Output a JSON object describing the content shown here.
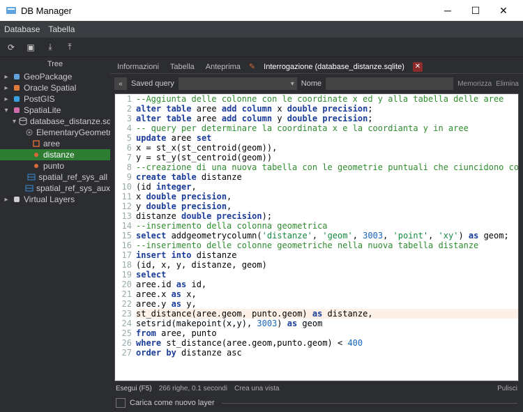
{
  "window": {
    "title": "DB Manager"
  },
  "menus": {
    "database": "Database",
    "tabella": "Tabella"
  },
  "tree_header": "Tree",
  "tree": [
    {
      "label": "GeoPackage",
      "depth": 0,
      "twisty": "▸",
      "icon": "geopackage-icon",
      "color": "#5fa3e0"
    },
    {
      "label": "Oracle Spatial",
      "depth": 0,
      "twisty": "▸",
      "icon": "oracle-icon",
      "color": "#e07c3a"
    },
    {
      "label": "PostGIS",
      "depth": 0,
      "twisty": "▸",
      "icon": "postgis-icon",
      "color": "#3aa0e0"
    },
    {
      "label": "SpatiaLite",
      "depth": 0,
      "twisty": "▾",
      "icon": "spatialite-icon",
      "color": "#d06aa8"
    },
    {
      "label": "database_distanze.sqlite",
      "depth": 1,
      "twisty": "▾",
      "icon": "db-icon",
      "color": "#cccccc"
    },
    {
      "label": "ElementaryGeometries",
      "depth": 2,
      "twisty": "",
      "icon": "gear-icon",
      "color": "#999999"
    },
    {
      "label": "aree",
      "depth": 2,
      "twisty": "",
      "icon": "polygon-icon",
      "color": "#d66a3a"
    },
    {
      "label": "distanze",
      "depth": 2,
      "twisty": "",
      "icon": "point-icon",
      "color": "#d66a3a",
      "selected": true
    },
    {
      "label": "punto",
      "depth": 2,
      "twisty": "",
      "icon": "point-icon",
      "color": "#d66a3a"
    },
    {
      "label": "spatial_ref_sys_all",
      "depth": 2,
      "twisty": "",
      "icon": "table-icon",
      "color": "#3a8cd6"
    },
    {
      "label": "spatial_ref_sys_aux",
      "depth": 2,
      "twisty": "",
      "icon": "table-icon",
      "color": "#3a8cd6"
    },
    {
      "label": "Virtual Layers",
      "depth": 0,
      "twisty": "▸",
      "icon": "virtual-icon",
      "color": "#cccccc"
    }
  ],
  "tabs": {
    "info": "Informazioni",
    "tabella": "Tabella",
    "anteprima": "Anteprima",
    "query": "Interrogazione (database_distanze.sqlite)"
  },
  "querybar": {
    "saved": "Saved query",
    "nome": "Nome",
    "memorizza": "Memorizza",
    "elimina": "Elimina"
  },
  "code": [
    {
      "n": 1,
      "tokens": [
        {
          "t": "--Aggiunta delle colonne con le coordinate x ed y alla tabella delle aree",
          "c": "c-cmt"
        }
      ]
    },
    {
      "n": 2,
      "tokens": [
        {
          "t": "alter table",
          "c": "c-kw"
        },
        {
          "t": " aree "
        },
        {
          "t": "add column",
          "c": "c-kw"
        },
        {
          "t": " x "
        },
        {
          "t": "double precision",
          "c": "c-kw"
        },
        {
          "t": ";"
        }
      ]
    },
    {
      "n": 3,
      "tokens": [
        {
          "t": "alter table",
          "c": "c-kw"
        },
        {
          "t": " aree "
        },
        {
          "t": "add column",
          "c": "c-kw"
        },
        {
          "t": " y "
        },
        {
          "t": "double precision",
          "c": "c-kw"
        },
        {
          "t": ";"
        }
      ]
    },
    {
      "n": 4,
      "tokens": [
        {
          "t": "-- query per determinare la coordinata x e la coordianta y in aree",
          "c": "c-cmt"
        }
      ]
    },
    {
      "n": 5,
      "tokens": [
        {
          "t": "update",
          "c": "c-kw"
        },
        {
          "t": " aree "
        },
        {
          "t": "set",
          "c": "c-kw"
        }
      ]
    },
    {
      "n": 6,
      "tokens": [
        {
          "t": "x = st_x(st_centroid(geom)),"
        }
      ]
    },
    {
      "n": 7,
      "tokens": [
        {
          "t": "y = st_y(st_centroid(geom))"
        }
      ]
    },
    {
      "n": 8,
      "tokens": [
        {
          "t": "--creazione di una nuova tabella con le geometrie puntuali che ciuncidono con il centroide del poligono",
          "c": "c-cmt"
        }
      ]
    },
    {
      "n": 9,
      "tokens": [
        {
          "t": "create table",
          "c": "c-kw"
        },
        {
          "t": " distanze"
        }
      ]
    },
    {
      "n": 10,
      "tokens": [
        {
          "t": "(id "
        },
        {
          "t": "integer",
          "c": "c-kw"
        },
        {
          "t": ","
        }
      ]
    },
    {
      "n": 11,
      "tokens": [
        {
          "t": "x "
        },
        {
          "t": "double precision",
          "c": "c-kw"
        },
        {
          "t": ","
        }
      ]
    },
    {
      "n": 12,
      "tokens": [
        {
          "t": "y "
        },
        {
          "t": "double precision",
          "c": "c-kw"
        },
        {
          "t": ","
        }
      ]
    },
    {
      "n": 13,
      "tokens": [
        {
          "t": "distanze "
        },
        {
          "t": "double precision",
          "c": "c-kw"
        },
        {
          "t": ");"
        }
      ]
    },
    {
      "n": 14,
      "tokens": [
        {
          "t": "--inserimento della colonna geometrica",
          "c": "c-cmt"
        }
      ]
    },
    {
      "n": 15,
      "tokens": [
        {
          "t": "select",
          "c": "c-kw"
        },
        {
          "t": " addgeometrycolumn("
        },
        {
          "t": "'distanze'",
          "c": "c-str"
        },
        {
          "t": ", "
        },
        {
          "t": "'geom'",
          "c": "c-str"
        },
        {
          "t": ", "
        },
        {
          "t": "3003",
          "c": "c-num"
        },
        {
          "t": ", "
        },
        {
          "t": "'point'",
          "c": "c-str"
        },
        {
          "t": ", "
        },
        {
          "t": "'xy'",
          "c": "c-str"
        },
        {
          "t": ") "
        },
        {
          "t": "as",
          "c": "c-kw"
        },
        {
          "t": " geom;"
        }
      ]
    },
    {
      "n": 16,
      "tokens": [
        {
          "t": "--inserimento delle colonne geometriche nella nuova tabella distanze",
          "c": "c-cmt"
        }
      ]
    },
    {
      "n": 17,
      "tokens": [
        {
          "t": "insert into",
          "c": "c-kw"
        },
        {
          "t": " distanze"
        }
      ]
    },
    {
      "n": 18,
      "tokens": [
        {
          "t": "(id, x, y, distanze, geom)"
        }
      ]
    },
    {
      "n": 19,
      "tokens": [
        {
          "t": "select",
          "c": "c-kw"
        }
      ]
    },
    {
      "n": 20,
      "tokens": [
        {
          "t": "aree.id "
        },
        {
          "t": "as",
          "c": "c-kw"
        },
        {
          "t": " id,"
        }
      ]
    },
    {
      "n": 21,
      "tokens": [
        {
          "t": "aree.x "
        },
        {
          "t": "as",
          "c": "c-kw"
        },
        {
          "t": " x,"
        }
      ]
    },
    {
      "n": 22,
      "tokens": [
        {
          "t": "aree.y "
        },
        {
          "t": "as",
          "c": "c-kw"
        },
        {
          "t": " y,"
        }
      ]
    },
    {
      "n": 23,
      "hl": true,
      "tokens": [
        {
          "t": "st_distance(aree.geom, punto.geom) "
        },
        {
          "t": "as",
          "c": "c-kw"
        },
        {
          "t": " distanze,"
        }
      ]
    },
    {
      "n": 24,
      "tokens": [
        {
          "t": "setsrid(makepoint(x,y), "
        },
        {
          "t": "3003",
          "c": "c-num"
        },
        {
          "t": ") "
        },
        {
          "t": "as",
          "c": "c-kw"
        },
        {
          "t": " geom"
        }
      ]
    },
    {
      "n": 25,
      "tokens": [
        {
          "t": "from",
          "c": "c-kw"
        },
        {
          "t": " aree, punto"
        }
      ]
    },
    {
      "n": 26,
      "tokens": [
        {
          "t": "where",
          "c": "c-kw"
        },
        {
          "t": " st_distance(aree.geom,punto.geom) < "
        },
        {
          "t": "400",
          "c": "c-num"
        }
      ]
    },
    {
      "n": 27,
      "tokens": [
        {
          "t": "order by",
          "c": "c-kw"
        },
        {
          "t": " distanze asc"
        }
      ]
    }
  ],
  "status": {
    "esegui": "Esegui (F5)",
    "result": "266 righe, 0.1 secondi",
    "crea": "Crea una vista",
    "pulisci": "Pulisci"
  },
  "footer": {
    "checkbox_label": "Carica come nuovo layer"
  }
}
